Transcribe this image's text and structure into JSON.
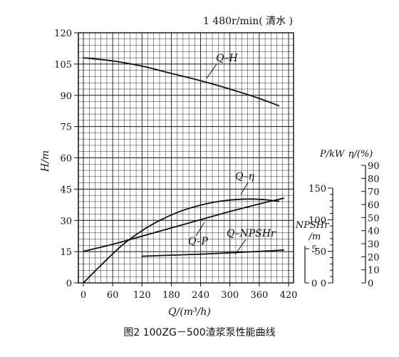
{
  "caption": "图2  100ZG－500渣浆泵性能曲线",
  "chart_data": {
    "type": "line",
    "title": "1 480r/min( 清水 )",
    "xlabel": "Q/(m³/h)",
    "x_ticks": [
      "0",
      "60",
      "120",
      "180",
      "240",
      "300",
      "360",
      "420"
    ],
    "xlim": [
      0,
      420
    ],
    "axes": {
      "H": {
        "label": "H/m",
        "ylim": [
          0,
          120
        ],
        "ticks": [
          "0",
          "15",
          "30",
          "45",
          "60",
          "75",
          "90",
          "105",
          "120"
        ]
      },
      "P": {
        "label": "P/kW",
        "ylim": [
          0,
          150
        ],
        "ticks": [
          "0",
          "50",
          "100",
          "150"
        ]
      },
      "eta": {
        "label": "η/(%)",
        "ylim": [
          0,
          90
        ],
        "ticks": [
          "0",
          "10",
          "20",
          "30",
          "40",
          "50",
          "60",
          "70",
          "80",
          "90"
        ]
      },
      "NPSHr": {
        "label": "NPSHr",
        "unit": "/m",
        "ylim": [
          0,
          5
        ],
        "ticks": [
          "0",
          "5"
        ]
      }
    },
    "grid": true,
    "series": [
      {
        "name": "Q–H",
        "axis": "H",
        "x": [
          0,
          60,
          120,
          180,
          240,
          300,
          360,
          400
        ],
        "y": [
          108,
          106.5,
          104,
          100.5,
          97,
          93,
          88.5,
          85
        ]
      },
      {
        "name": "Q–η",
        "axis": "eta",
        "x": [
          0,
          40,
          80,
          120,
          160,
          200,
          240,
          280,
          320,
          360,
          400
        ],
        "y": [
          0,
          15,
          29,
          40,
          48.5,
          55,
          59.5,
          62.5,
          64,
          64,
          62.5
        ]
      },
      {
        "name": "Q–P",
        "axis": "P",
        "x": [
          0,
          60,
          120,
          180,
          240,
          300,
          360,
          410
        ],
        "y": [
          50,
          61,
          74,
          87,
          100,
          113,
          125,
          134
        ]
      },
      {
        "name": "Q–NPSHr",
        "axis": "NPSHr",
        "x": [
          120,
          180,
          240,
          300,
          360,
          410
        ],
        "y": [
          3.9,
          4.05,
          4.2,
          4.4,
          4.6,
          4.8
        ]
      }
    ]
  }
}
